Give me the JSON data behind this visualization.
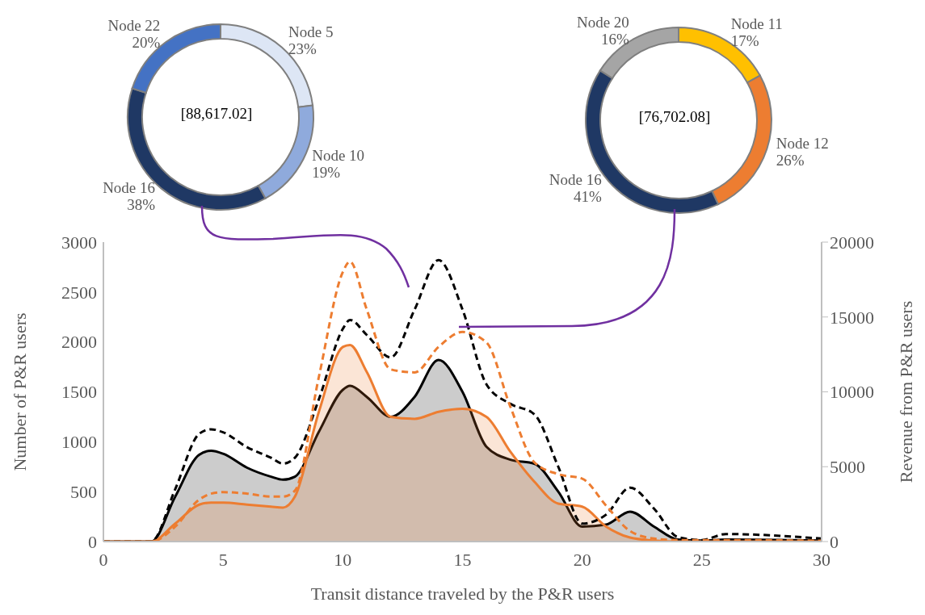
{
  "chart_data": [
    {
      "type": "donut",
      "categories": [
        "Node 5",
        "Node 10",
        "Node 16",
        "Node 22"
      ],
      "values": [
        23,
        19,
        38,
        20
      ],
      "value_labels": [
        "23%",
        "19%",
        "38%",
        "20%"
      ],
      "colors": [
        "#dde6f5",
        "#8faadc",
        "#1f3864",
        "#4472c4"
      ],
      "annotations": [
        "[88,617.02]"
      ]
    },
    {
      "type": "donut",
      "categories": [
        "Node 11",
        "Node 12",
        "Node 16",
        "Node 20"
      ],
      "values": [
        17,
        26,
        41,
        16
      ],
      "value_labels": [
        "17%",
        "26%",
        "41%",
        "16%"
      ],
      "colors": [
        "#ffc000",
        "#ed7d31",
        "#1f3864",
        "#a5a5a5"
      ],
      "annotations": [
        "[76,702.08]"
      ]
    },
    {
      "type": "area",
      "xlabel": "Transit distance traveled by the P&R users",
      "ylabel": "Number of P&R users",
      "y2label": "Revenue from P&R users",
      "x": [
        0,
        1,
        2,
        3,
        4,
        4.5,
        5,
        6,
        7,
        7.5,
        8,
        9,
        10,
        10.3,
        11,
        12,
        13,
        14,
        15,
        16,
        17,
        18,
        19,
        20,
        21,
        22,
        23,
        24,
        25,
        26,
        30
      ],
      "xlim": [
        0,
        30
      ],
      "xticks": [
        0,
        5,
        10,
        15,
        20,
        25,
        30
      ],
      "ylim": [
        0,
        3000
      ],
      "yticks": [
        0,
        500,
        1000,
        1500,
        2000,
        2500,
        3000
      ],
      "y2lim": [
        0,
        20000
      ],
      "y2ticks": [
        0,
        5000,
        10000,
        15000,
        20000
      ],
      "series": [
        {
          "type": "area",
          "color": "#000000",
          "values": [
            0,
            0,
            0,
            450,
            870,
            910,
            880,
            740,
            650,
            620,
            650,
            1100,
            1520,
            1560,
            1450,
            1250,
            1450,
            1820,
            1500,
            950,
            820,
            780,
            500,
            150,
            170,
            300,
            150,
            20,
            10,
            20,
            10
          ]
        },
        {
          "type": "area",
          "color": "#ed7d31",
          "values": [
            0,
            0,
            0,
            180,
            370,
            390,
            390,
            370,
            350,
            340,
            450,
            1300,
            1950,
            1970,
            1700,
            1250,
            1230,
            1300,
            1330,
            1250,
            900,
            600,
            380,
            350,
            150,
            40,
            10,
            0,
            0,
            0,
            0
          ]
        },
        {
          "type": "line",
          "axis": "y2",
          "line_style": "dashed",
          "color": "#000000",
          "values": [
            0,
            0,
            0,
            3500,
            7200,
            7500,
            7300,
            6300,
            5600,
            5200,
            5600,
            9500,
            14200,
            14800,
            13800,
            12300,
            15500,
            18800,
            15500,
            10500,
            9200,
            8500,
            5000,
            1200,
            1800,
            3600,
            2200,
            300,
            100,
            500,
            200
          ]
        },
        {
          "type": "line",
          "axis": "y2",
          "line_style": "dashed",
          "color": "#ed7d31",
          "values": [
            0,
            0,
            0,
            1000,
            2800,
            3200,
            3300,
            3200,
            3000,
            3000,
            3400,
            11000,
            18000,
            18700,
            15500,
            11500,
            11300,
            13000,
            14000,
            13300,
            9000,
            5300,
            4500,
            4200,
            2400,
            700,
            200,
            100,
            100,
            100,
            50
          ]
        }
      ]
    }
  ]
}
